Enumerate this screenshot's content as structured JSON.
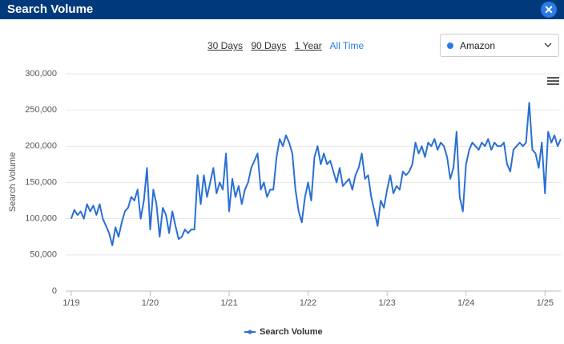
{
  "header": {
    "title": "Search Volume"
  },
  "controls": {
    "ranges": [
      "30 Days",
      "90 Days",
      "1 Year",
      "All Time"
    ],
    "selected": "Amazon"
  },
  "chart_data": {
    "type": "line",
    "y_label": "Search Volume",
    "x": [
      2019.0,
      2019.04,
      2019.08,
      2019.12,
      2019.16,
      2019.2,
      2019.24,
      2019.28,
      2019.32,
      2019.36,
      2019.4,
      2019.44,
      2019.48,
      2019.52,
      2019.56,
      2019.6,
      2019.64,
      2019.68,
      2019.72,
      2019.76,
      2019.8,
      2019.84,
      2019.88,
      2019.92,
      2019.96,
      2020.0,
      2020.04,
      2020.08,
      2020.12,
      2020.16,
      2020.2,
      2020.24,
      2020.28,
      2020.32,
      2020.36,
      2020.4,
      2020.44,
      2020.48,
      2020.52,
      2020.56,
      2020.6,
      2020.64,
      2020.68,
      2020.72,
      2020.76,
      2020.8,
      2020.84,
      2020.88,
      2020.92,
      2020.96,
      2021.0,
      2021.04,
      2021.08,
      2021.12,
      2021.16,
      2021.2,
      2021.24,
      2021.28,
      2021.32,
      2021.36,
      2021.4,
      2021.44,
      2021.48,
      2021.52,
      2021.56,
      2021.6,
      2021.64,
      2021.68,
      2021.72,
      2021.76,
      2021.8,
      2021.84,
      2021.88,
      2021.92,
      2021.96,
      2022.0,
      2022.04,
      2022.08,
      2022.12,
      2022.16,
      2022.2,
      2022.24,
      2022.28,
      2022.32,
      2022.36,
      2022.4,
      2022.44,
      2022.48,
      2022.52,
      2022.56,
      2022.6,
      2022.64,
      2022.68,
      2022.72,
      2022.76,
      2022.8,
      2022.84,
      2022.88,
      2022.92,
      2022.96,
      2023.0,
      2023.04,
      2023.08,
      2023.12,
      2023.16,
      2023.2,
      2023.24,
      2023.28,
      2023.32,
      2023.36,
      2023.4,
      2023.44,
      2023.48,
      2023.52,
      2023.56,
      2023.6,
      2023.64,
      2023.68,
      2023.72,
      2023.76,
      2023.8,
      2023.84,
      2023.88,
      2023.92,
      2023.96,
      2024.0,
      2024.04,
      2024.08,
      2024.12,
      2024.16,
      2024.2,
      2024.24,
      2024.28,
      2024.32,
      2024.36,
      2024.4,
      2024.44,
      2024.48,
      2024.52,
      2024.56,
      2024.6,
      2024.64,
      2024.68,
      2024.72,
      2024.76,
      2024.8,
      2024.84,
      2024.88,
      2024.92,
      2024.96,
      2025.0,
      2025.04,
      2025.08,
      2025.12,
      2025.16,
      2025.2
    ],
    "series": [
      {
        "name": "Search Volume",
        "color": "#2a6fd4",
        "values": [
          100000,
          112000,
          105000,
          110000,
          100000,
          120000,
          110000,
          118000,
          105000,
          120000,
          100000,
          90000,
          80000,
          63000,
          88000,
          75000,
          95000,
          110000,
          115000,
          130000,
          125000,
          140000,
          100000,
          125000,
          170000,
          85000,
          140000,
          120000,
          75000,
          115000,
          105000,
          80000,
          110000,
          90000,
          72000,
          75000,
          85000,
          80000,
          85000,
          85000,
          160000,
          120000,
          160000,
          130000,
          150000,
          170000,
          135000,
          150000,
          140000,
          190000,
          110000,
          155000,
          130000,
          145000,
          120000,
          140000,
          150000,
          170000,
          180000,
          190000,
          140000,
          150000,
          130000,
          140000,
          140000,
          185000,
          210000,
          200000,
          215000,
          205000,
          190000,
          140000,
          110000,
          95000,
          130000,
          150000,
          125000,
          185000,
          200000,
          175000,
          190000,
          175000,
          180000,
          165000,
          150000,
          170000,
          145000,
          150000,
          155000,
          140000,
          160000,
          170000,
          190000,
          155000,
          160000,
          130000,
          110000,
          90000,
          125000,
          115000,
          140000,
          160000,
          135000,
          145000,
          140000,
          165000,
          160000,
          165000,
          175000,
          205000,
          190000,
          200000,
          185000,
          205000,
          200000,
          210000,
          195000,
          205000,
          200000,
          185000,
          155000,
          170000,
          220000,
          130000,
          110000,
          175000,
          195000,
          205000,
          200000,
          195000,
          205000,
          200000,
          210000,
          195000,
          205000,
          200000,
          200000,
          205000,
          175000,
          165000,
          195000,
          200000,
          205000,
          200000,
          205000,
          260000,
          195000,
          190000,
          170000,
          205000,
          135000,
          220000,
          205000,
          215000,
          200000,
          210000
        ]
      }
    ],
    "xlim": [
      2018.93,
      2025.2
    ],
    "xticks": [
      {
        "value": 2019,
        "label": "1/19"
      },
      {
        "value": 2020,
        "label": "1/20"
      },
      {
        "value": 2021,
        "label": "1/21"
      },
      {
        "value": 2022,
        "label": "1/22"
      },
      {
        "value": 2023,
        "label": "1/23"
      },
      {
        "value": 2024,
        "label": "1/24"
      },
      {
        "value": 2025,
        "label": "1/25"
      }
    ],
    "ylim": [
      0,
      300000
    ],
    "yticks": [
      0,
      {
        "value": 50000,
        "label": "50,000"
      },
      {
        "value": 100000,
        "label": "100,000"
      },
      {
        "value": 150000,
        "label": "150,000"
      },
      {
        "value": 200000,
        "label": "200,000"
      },
      {
        "value": 250000,
        "label": "250,000"
      },
      {
        "value": 300000,
        "label": "300,000"
      }
    ],
    "grid": true,
    "legend": "bottom"
  }
}
